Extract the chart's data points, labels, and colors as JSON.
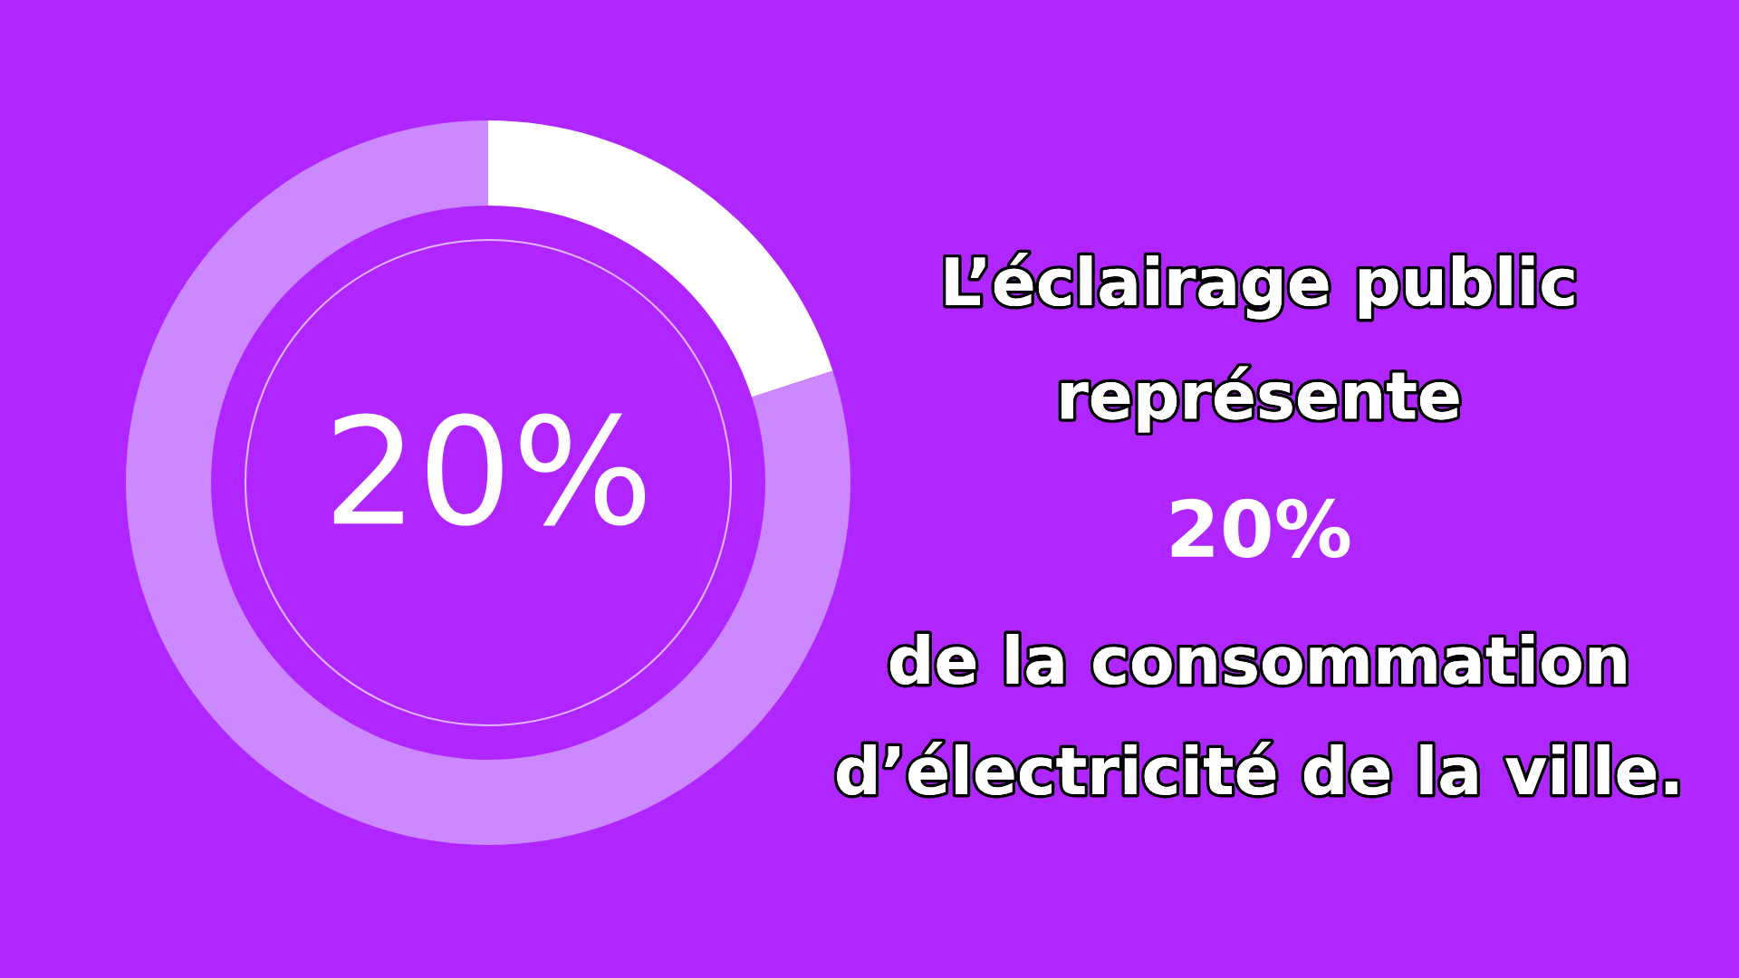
{
  "chart_data": {
    "type": "donut",
    "categories": [
      null,
      null
    ],
    "values": [
      20,
      80
    ],
    "colors": [
      "#ffffff",
      "#cc88ff"
    ],
    "value_labels": [
      "20%",
      null
    ],
    "annotations": [
      "L’éclairage public",
      "représente",
      "20%",
      "de la consommation",
      "d’électricité de la ville."
    ]
  }
}
